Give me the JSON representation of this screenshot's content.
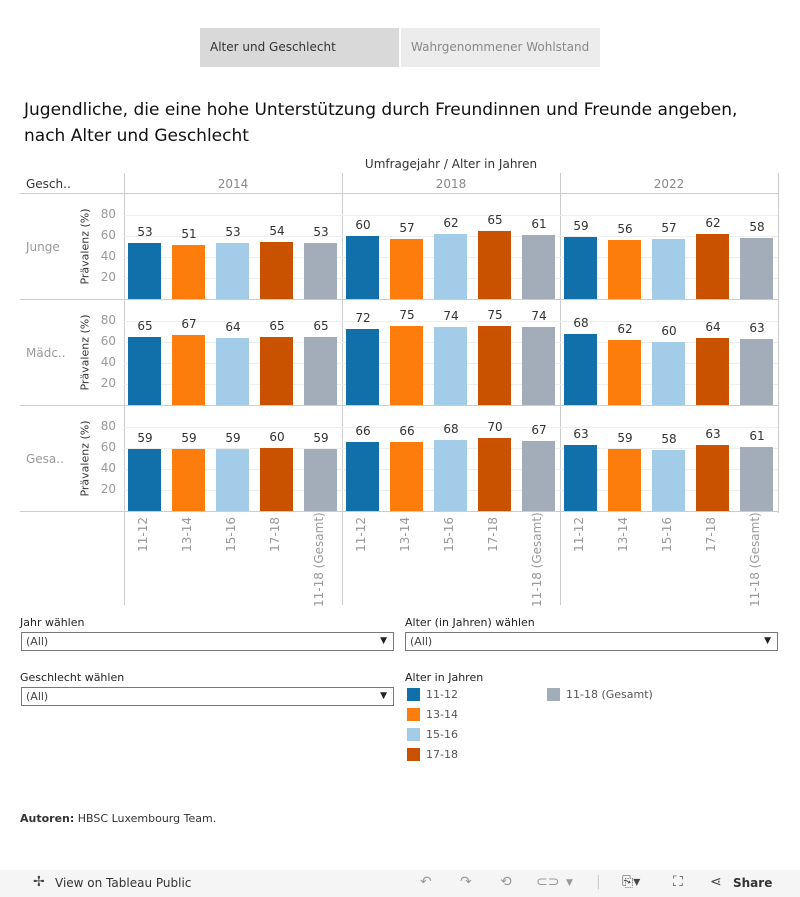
{
  "tabs": [
    {
      "label": "Alter und Geschlecht",
      "active": true
    },
    {
      "label": "Wahrgenommener Wohlstand",
      "active": false
    }
  ],
  "title": "Jugendliche, die eine hohe Unterstützung durch Freundinnen und Freunde angeben, nach Alter und Geschlecht",
  "chart_data": {
    "type": "bar",
    "column_header": "Umfragejahr / Alter in Jahren",
    "row_header": "Gesch..",
    "ylabel": "Prävalenz (%)",
    "yticks": [
      20,
      40,
      60,
      80
    ],
    "ylim": [
      0,
      100
    ],
    "years": [
      "2014",
      "2018",
      "2022"
    ],
    "categories": [
      "11-12",
      "13-14",
      "15-16",
      "17-18",
      "11-18 (Gesamt)"
    ],
    "colors": [
      "#1170aa",
      "#fc7d0b",
      "#a3cce9",
      "#c85200",
      "#a3acb9"
    ],
    "rows": [
      {
        "label": "Junge",
        "values": {
          "2014": [
            53,
            51,
            53,
            54,
            53
          ],
          "2018": [
            60,
            57,
            62,
            65,
            61
          ],
          "2022": [
            59,
            56,
            57,
            62,
            58
          ]
        }
      },
      {
        "label": "Mädc..",
        "values": {
          "2014": [
            65,
            67,
            64,
            65,
            65
          ],
          "2018": [
            72,
            75,
            74,
            75,
            74
          ],
          "2022": [
            68,
            62,
            60,
            64,
            63
          ]
        }
      },
      {
        "label": "Gesa..",
        "values": {
          "2014": [
            59,
            59,
            59,
            60,
            59
          ],
          "2018": [
            66,
            66,
            68,
            70,
            67
          ],
          "2022": [
            63,
            59,
            58,
            63,
            61
          ]
        }
      }
    ]
  },
  "filters": {
    "year": {
      "label": "Jahr wählen",
      "value": "(All)"
    },
    "age": {
      "label": "Alter (in Jahren) wählen",
      "value": "(All)"
    },
    "gender": {
      "label": "Geschlecht wählen",
      "value": "(All)"
    }
  },
  "legend": {
    "title": "Alter in Jahren",
    "items": [
      "11-12",
      "13-14",
      "15-16",
      "17-18",
      "11-18 (Gesamt)"
    ]
  },
  "authors": {
    "label": "Autoren:",
    "value": "HBSC Luxembourg Team."
  },
  "toolbar": {
    "view_label": "View on Tableau Public",
    "share_label": "Share"
  }
}
